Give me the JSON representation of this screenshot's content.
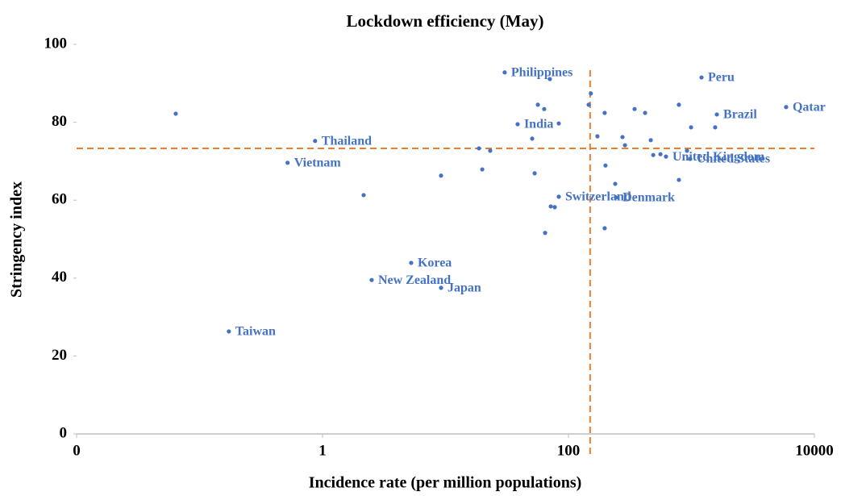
{
  "chart_data": {
    "type": "scatter",
    "title": "Lockdown efficiency (May)",
    "x_label": "Incidence rate (per million populations)",
    "y_label": "Stringency index",
    "xscale": "log",
    "color": "#4472c4",
    "xlim": [
      0.01,
      10000
    ],
    "xticks": [
      {
        "value": 0.01,
        "label": "0"
      },
      1,
      100,
      10000
    ],
    "ylim": [
      0,
      100
    ],
    "yticks": [
      0,
      20,
      40,
      60,
      80,
      100
    ],
    "reference_lines": {
      "x": 150,
      "y": 73.3,
      "color": "#ed7d31"
    },
    "x": [
      0.064,
      0.173,
      0.52,
      0.87,
      2.16,
      2.51,
      5.26,
      9.2,
      9.2,
      18.7,
      19.9,
      23.1,
      30.3,
      38.6,
      50.7,
      53.1,
      56.4,
      64.6,
      70.6,
      71.8,
      77.4,
      63.5,
      83.4,
      83.4,
      146,
      152,
      172,
      197,
      200,
      197,
      240,
      244,
      275,
      288,
      345,
      420,
      467,
      489,
      560,
      621,
      791,
      791,
      920,
      977,
      993,
      1208,
      1560,
      1610,
      5890
    ],
    "y": [
      82.2,
      26.3,
      69.6,
      75.2,
      61.3,
      39.5,
      43.9,
      66.3,
      37.5,
      73.3,
      67.9,
      72.7,
      92.8,
      79.5,
      75.8,
      66.9,
      84.5,
      51.6,
      91.1,
      58.4,
      58.2,
      83.4,
      60.9,
      79.7,
      84.5,
      87.4,
      76.4,
      82.4,
      68.9,
      52.8,
      64.2,
      60.7,
      76.2,
      74.1,
      83.4,
      82.4,
      75.4,
      71.6,
      71.8,
      71.2,
      84.5,
      65.2,
      72.7,
      70.6,
      78.7,
      91.5,
      78.7,
      82,
      83.9
    ],
    "labels": [
      null,
      "Taiwan",
      "Vietnam",
      "Thailand",
      null,
      "New Zealand",
      "Korea",
      null,
      "Japan",
      null,
      null,
      null,
      "Philippines",
      "India",
      null,
      null,
      null,
      null,
      null,
      null,
      null,
      null,
      "Switzerland",
      null,
      null,
      null,
      null,
      null,
      null,
      null,
      null,
      "Denmark",
      null,
      null,
      null,
      null,
      null,
      null,
      null,
      "United Kingdom",
      null,
      null,
      null,
      "United States",
      null,
      "Peru",
      null,
      "Brazil",
      "Qatar"
    ]
  }
}
